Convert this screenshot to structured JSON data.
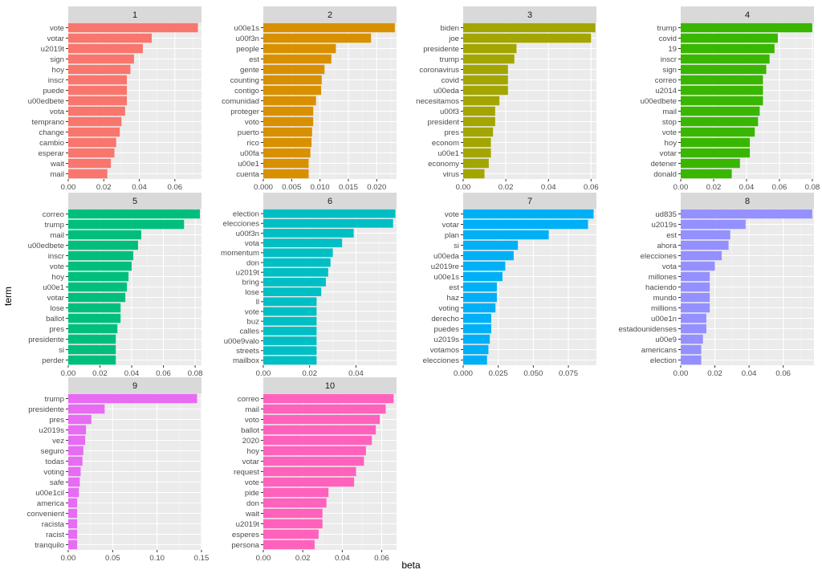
{
  "chart_data": {
    "type": "bar",
    "orientation": "horizontal",
    "layout": "facet-wrap",
    "xlabel": "beta",
    "ylabel": "term",
    "panel_background": "#ebebeb",
    "strip_background": "#d9d9d9",
    "grid": true,
    "facets": [
      {
        "label": "1",
        "color": "#F8766D",
        "xlim": [
          0,
          0.075
        ],
        "ticks": [
          0,
          0.02,
          0.04,
          0.06
        ],
        "tick_labels": [
          "0.00",
          "0.02",
          "0.04",
          "0.06"
        ],
        "terms": [
          "vote",
          "votar",
          "u2019t",
          "sign",
          "hoy",
          "inscr",
          "puede",
          "u00edbete",
          "vota",
          "temprano",
          "change",
          "cambio",
          "esperar",
          "wait",
          "mail"
        ],
        "values": [
          0.073,
          0.047,
          0.042,
          0.037,
          0.035,
          0.033,
          0.033,
          0.033,
          0.032,
          0.03,
          0.029,
          0.027,
          0.026,
          0.024,
          0.022
        ]
      },
      {
        "label": "2",
        "color": "#D89000",
        "xlim": [
          0,
          0.0235
        ],
        "ticks": [
          0,
          0.005,
          0.01,
          0.015,
          0.02
        ],
        "tick_labels": [
          "0.000",
          "0.005",
          "0.010",
          "0.015",
          "0.020"
        ],
        "terms": [
          "u00e1s",
          "u00f3n",
          "people",
          "est",
          "gente",
          "counting",
          "contigo",
          "comunidad",
          "proteger",
          "voto",
          "puerto",
          "rico",
          "u00fa",
          "u00e1",
          "cuenta"
        ],
        "values": [
          0.0232,
          0.019,
          0.0128,
          0.012,
          0.0108,
          0.0103,
          0.0102,
          0.0093,
          0.0088,
          0.0088,
          0.0086,
          0.0085,
          0.0083,
          0.008,
          0.008
        ]
      },
      {
        "label": "3",
        "color": "#A3A500",
        "xlim": [
          0,
          0.0625
        ],
        "ticks": [
          0,
          0.02,
          0.04,
          0.06
        ],
        "tick_labels": [
          "0.00",
          "0.02",
          "0.04",
          "0.06"
        ],
        "terms": [
          "biden",
          "joe",
          "presidente",
          "trump",
          "coronavirus",
          "covid",
          "u00eda",
          "necesitamos",
          "u00f3",
          "president",
          "pres",
          "econom",
          "u00e1",
          "economy",
          "virus"
        ],
        "values": [
          0.062,
          0.06,
          0.025,
          0.024,
          0.021,
          0.021,
          0.021,
          0.017,
          0.015,
          0.015,
          0.014,
          0.013,
          0.013,
          0.012,
          0.01
        ]
      },
      {
        "label": "4",
        "color": "#39B600",
        "xlim": [
          0,
          0.081
        ],
        "ticks": [
          0,
          0.02,
          0.04,
          0.06,
          0.08
        ],
        "tick_labels": [
          "0.00",
          "0.02",
          "0.04",
          "0.06",
          "0.08"
        ],
        "terms": [
          "trump",
          "covid",
          "19",
          "inscr",
          "sign",
          "correo",
          "u2014",
          "u00edbete",
          "mail",
          "stop",
          "vote",
          "hoy",
          "votar",
          "detener",
          "donald"
        ],
        "values": [
          0.08,
          0.059,
          0.057,
          0.054,
          0.052,
          0.05,
          0.05,
          0.05,
          0.048,
          0.047,
          0.045,
          0.042,
          0.042,
          0.036,
          0.031
        ]
      },
      {
        "label": "5",
        "color": "#00BF7D",
        "xlim": [
          0,
          0.084
        ],
        "ticks": [
          0,
          0.02,
          0.04,
          0.06,
          0.08
        ],
        "tick_labels": [
          "0.00",
          "0.02",
          "0.04",
          "0.06",
          "0.08"
        ],
        "terms": [
          "correo",
          "trump",
          "mail",
          "u00edbete",
          "inscr",
          "vote",
          "hoy",
          "u00e1",
          "votar",
          "lose",
          "ballot",
          "pres",
          "presidente",
          "si",
          "perder"
        ],
        "values": [
          0.083,
          0.073,
          0.046,
          0.044,
          0.041,
          0.04,
          0.038,
          0.037,
          0.036,
          0.033,
          0.033,
          0.031,
          0.03,
          0.03,
          0.03
        ]
      },
      {
        "label": "6",
        "color": "#00BFC4",
        "xlim": [
          0,
          0.0575
        ],
        "ticks": [
          0,
          0.02,
          0.04
        ],
        "tick_labels": [
          "0.00",
          "0.02",
          "0.04"
        ],
        "terms": [
          "election",
          "elecciones",
          "u00f3n",
          "vota",
          "momentum",
          "don",
          "u2019t",
          "bring",
          "lose",
          "ll",
          "vote",
          "buz",
          "calles",
          "u00e9valo",
          "streets",
          "mailbox"
        ],
        "values": [
          0.057,
          0.056,
          0.039,
          0.034,
          0.03,
          0.029,
          0.028,
          0.027,
          0.025,
          0.023,
          0.023,
          0.023,
          0.023,
          0.023,
          0.023,
          0.023
        ]
      },
      {
        "label": "7",
        "color": "#00B0F6",
        "xlim": [
          0,
          0.095
        ],
        "ticks": [
          0,
          0.025,
          0.05,
          0.075
        ],
        "tick_labels": [
          "0.000",
          "0.025",
          "0.050",
          "0.075"
        ],
        "terms": [
          "vote",
          "votar",
          "plan",
          "si",
          "u00eda",
          "u2019re",
          "u00e1s",
          "est",
          "haz",
          "voting",
          "derecho",
          "puedes",
          "u2019s",
          "votamos",
          "elecciones"
        ],
        "values": [
          0.093,
          0.089,
          0.061,
          0.039,
          0.036,
          0.03,
          0.028,
          0.024,
          0.024,
          0.023,
          0.02,
          0.02,
          0.019,
          0.018,
          0.017
        ]
      },
      {
        "label": "8",
        "color": "#9590FF",
        "xlim": [
          0,
          0.078
        ],
        "ticks": [
          0,
          0.02,
          0.04,
          0.06
        ],
        "tick_labels": [
          "0.00",
          "0.02",
          "0.04",
          "0.06"
        ],
        "terms": [
          "ud835",
          "u2019s",
          "est",
          "ahora",
          "elecciones",
          "vota",
          "millones",
          "haciendo",
          "mundo",
          "millions",
          "u00e1n",
          "estadounidenses",
          "u00e9",
          "americans",
          "election"
        ],
        "values": [
          0.077,
          0.038,
          0.029,
          0.028,
          0.024,
          0.02,
          0.017,
          0.017,
          0.017,
          0.017,
          0.015,
          0.015,
          0.013,
          0.012,
          0.012
        ]
      },
      {
        "label": "9",
        "color": "#E76BF3",
        "xlim": [
          0,
          0.15
        ],
        "ticks": [
          0,
          0.05,
          0.1,
          0.15
        ],
        "tick_labels": [
          "0.00",
          "0.05",
          "0.10",
          "0.15"
        ],
        "terms": [
          "trump",
          "presidente",
          "pres",
          "u2019s",
          "vez",
          "seguro",
          "todas",
          "voting",
          "safe",
          "u00e1cil",
          "america",
          "convenient",
          "racista",
          "racist",
          "tranquilo"
        ],
        "values": [
          0.145,
          0.041,
          0.026,
          0.02,
          0.019,
          0.017,
          0.016,
          0.014,
          0.013,
          0.012,
          0.01,
          0.01,
          0.01,
          0.01,
          0.01
        ]
      },
      {
        "label": "10",
        "color": "#FF62BC",
        "xlim": [
          0,
          0.0675
        ],
        "ticks": [
          0,
          0.02,
          0.04,
          0.06
        ],
        "tick_labels": [
          "0.00",
          "0.02",
          "0.04",
          "0.06"
        ],
        "terms": [
          "correo",
          "mail",
          "voto",
          "ballot",
          "2020",
          "hoy",
          "votar",
          "request",
          "vote",
          "pide",
          "don",
          "wait",
          "u2019t",
          "esperes",
          "persona"
        ],
        "values": [
          0.066,
          0.062,
          0.059,
          0.057,
          0.055,
          0.052,
          0.051,
          0.047,
          0.046,
          0.033,
          0.032,
          0.03,
          0.03,
          0.028,
          0.026
        ]
      }
    ]
  }
}
